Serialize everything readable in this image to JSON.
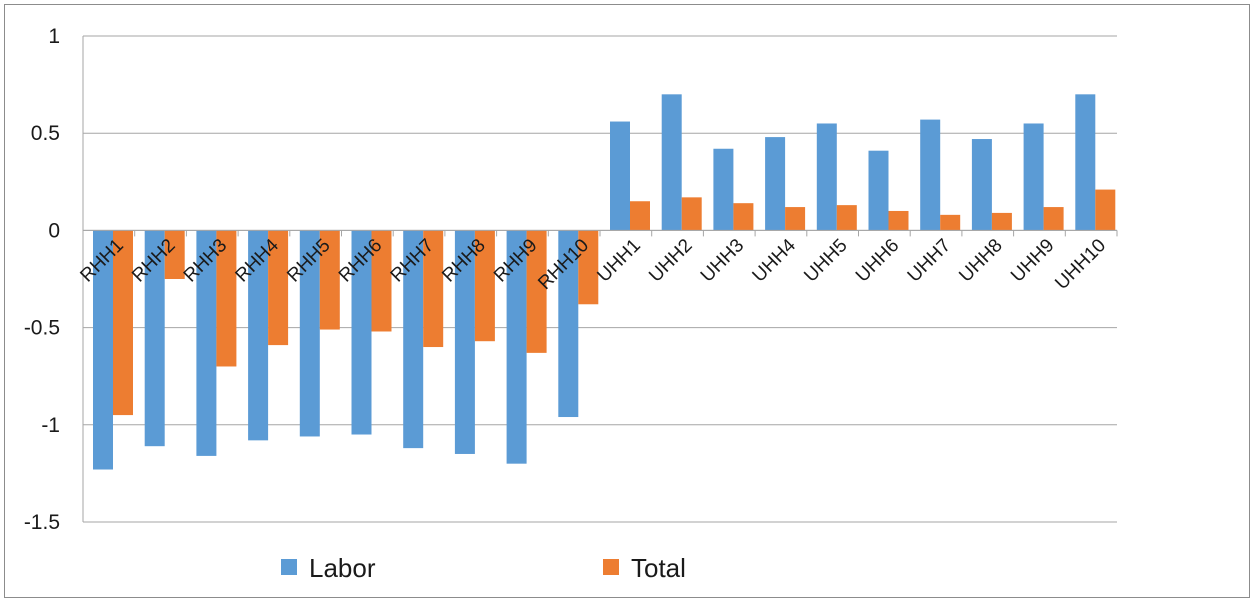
{
  "chart_data": {
    "type": "bar",
    "categories": [
      "RHH1",
      "RHH2",
      "RHH3",
      "RHH4",
      "RHH5",
      "RHH6",
      "RHH7",
      "RHH8",
      "RHH9",
      "RHH10",
      "UHH1",
      "UHH2",
      "UHH3",
      "UHH4",
      "UHH5",
      "UHH6",
      "UHH7",
      "UHH8",
      "UHH9",
      "UHH10"
    ],
    "series": [
      {
        "name": "Labor",
        "color": "#5b9bd5",
        "values": [
          -1.23,
          -1.11,
          -1.16,
          -1.08,
          -1.06,
          -1.05,
          -1.12,
          -1.15,
          -1.2,
          -0.96,
          0.56,
          0.7,
          0.42,
          0.48,
          0.55,
          0.41,
          0.57,
          0.47,
          0.55,
          0.7
        ]
      },
      {
        "name": "Total",
        "color": "#ed7d31",
        "values": [
          -0.95,
          -0.25,
          -0.7,
          -0.59,
          -0.51,
          -0.52,
          -0.6,
          -0.57,
          -0.63,
          -0.38,
          0.15,
          0.17,
          0.14,
          0.12,
          0.13,
          0.1,
          0.08,
          0.09,
          0.12,
          0.21
        ]
      }
    ],
    "yticks": [
      "1",
      "0.5",
      "0",
      "-0.5",
      "-1",
      "-1.5"
    ],
    "ylim": [
      -1.5,
      1
    ],
    "grid": true,
    "legend_position": "bottom",
    "title": "",
    "xlabel": "",
    "ylabel": ""
  }
}
